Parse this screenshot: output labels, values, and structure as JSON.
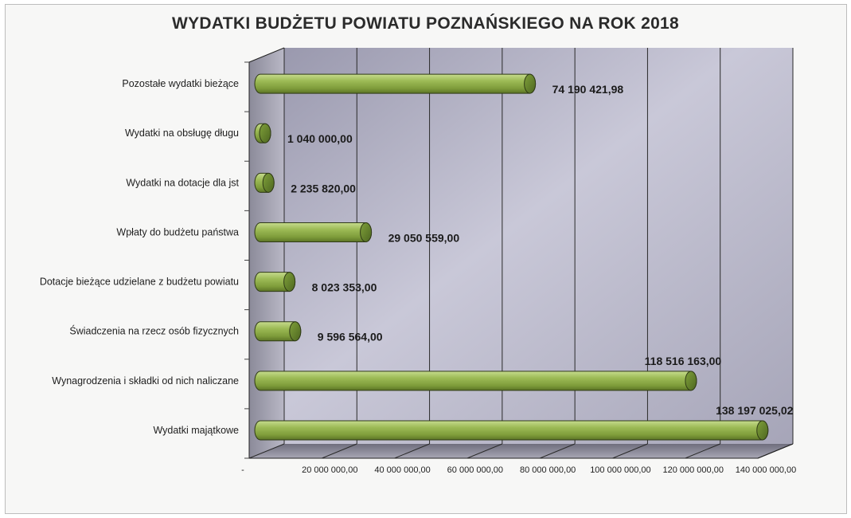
{
  "chart_data": {
    "type": "bar",
    "orientation": "horizontal",
    "title": "WYDATKI BUDŻETU POWIATU POZNAŃSKIEGO NA ROK 2018",
    "categories": [
      "Pozostałe wydatki bieżące",
      "Wydatki na obsługę długu",
      "Wydatki na dotacje dla jst",
      "Wpłaty do budżetu państwa",
      "Dotacje bieżące udzielane z budżetu powiatu",
      "Świadczenia na rzecz osób fizycznych",
      "Wynagrodzenia i składki od nich naliczane",
      "Wydatki majątkowe"
    ],
    "values": [
      74190421.98,
      1040000.0,
      2235820.0,
      29050559.0,
      8023353.0,
      9596564.0,
      118516163.0,
      138197025.02
    ],
    "value_labels": [
      "74 190 421,98",
      "1 040 000,00",
      "2 235 820,00",
      "29 050 559,00",
      "8 023 353,00",
      "9 596 564,00",
      "118 516 163,00",
      "138 197 025,02"
    ],
    "x_ticks": [
      "-",
      "20 000 000,00",
      "40 000 000,00",
      "60 000 000,00",
      "80 000 000,00",
      "100 000 000,00",
      "120 000 000,00",
      "140 000 000,00"
    ],
    "xlim": [
      0,
      140000000
    ],
    "grid": true,
    "legend": "none",
    "colors": {
      "bar": "#8fb04a",
      "bar_cap": "#5f7a26",
      "bar_dark": "#3a4a1a",
      "wall": "#b4b3c6",
      "floor": "#8a8998",
      "side": "#9d9cab"
    }
  }
}
